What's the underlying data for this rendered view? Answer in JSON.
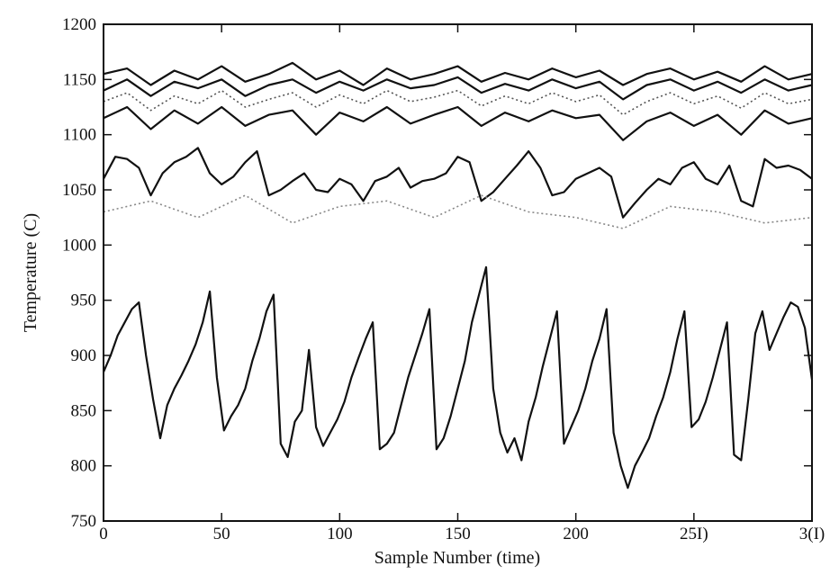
{
  "chart_data": {
    "type": "line",
    "title": "",
    "xlabel": "Sample Number (time)",
    "ylabel": "Temperature (C)",
    "xlim": [
      0,
      300
    ],
    "ylim": [
      750,
      1200
    ],
    "grid": false,
    "legend": "none",
    "x_ticks": [
      {
        "value": 0,
        "label": "0"
      },
      {
        "value": 50,
        "label": "50"
      },
      {
        "value": 100,
        "label": "100"
      },
      {
        "value": 150,
        "label": "150"
      },
      {
        "value": 200,
        "label": "200"
      },
      {
        "value": 250,
        "label": "25I)"
      },
      {
        "value": 300,
        "label": "3(I)"
      }
    ],
    "y_ticks": [
      {
        "value": 750,
        "label": "750"
      },
      {
        "value": 800,
        "label": "800"
      },
      {
        "value": 850,
        "label": "850"
      },
      {
        "value": 900,
        "label": "900"
      },
      {
        "value": 950,
        "label": "950"
      },
      {
        "value": 1000,
        "label": "1000"
      },
      {
        "value": 1050,
        "label": "1050"
      },
      {
        "value": 1100,
        "label": "1100"
      },
      {
        "value": 1150,
        "label": "1150"
      },
      {
        "value": 1200,
        "label": "1200"
      }
    ],
    "series": [
      {
        "style": "solid",
        "color": "#111111",
        "x": [
          0,
          10,
          20,
          30,
          40,
          50,
          60,
          70,
          80,
          90,
          100,
          110,
          120,
          130,
          140,
          150,
          160,
          170,
          180,
          190,
          200,
          210,
          220,
          230,
          240,
          250,
          260,
          270,
          280,
          290,
          300
        ],
        "y": [
          1155,
          1160,
          1145,
          1158,
          1150,
          1162,
          1148,
          1155,
          1165,
          1150,
          1158,
          1145,
          1160,
          1150,
          1155,
          1162,
          1148,
          1156,
          1150,
          1160,
          1152,
          1158,
          1145,
          1155,
          1160,
          1150,
          1157,
          1148,
          1162,
          1150,
          1155
        ]
      },
      {
        "style": "solid",
        "color": "#111111",
        "x": [
          0,
          10,
          20,
          30,
          40,
          50,
          60,
          70,
          80,
          90,
          100,
          110,
          120,
          130,
          140,
          150,
          160,
          170,
          180,
          190,
          200,
          210,
          220,
          230,
          240,
          250,
          260,
          270,
          280,
          290,
          300
        ],
        "y": [
          1140,
          1150,
          1135,
          1148,
          1142,
          1150,
          1135,
          1145,
          1150,
          1138,
          1148,
          1140,
          1150,
          1142,
          1145,
          1152,
          1138,
          1146,
          1140,
          1150,
          1142,
          1148,
          1132,
          1145,
          1150,
          1140,
          1148,
          1138,
          1150,
          1140,
          1145
        ]
      },
      {
        "style": "dotted",
        "color": "#555555",
        "x": [
          0,
          10,
          20,
          30,
          40,
          50,
          60,
          70,
          80,
          90,
          100,
          110,
          120,
          130,
          140,
          150,
          160,
          170,
          180,
          190,
          200,
          210,
          220,
          230,
          240,
          250,
          260,
          270,
          280,
          290,
          300
        ],
        "y": [
          1130,
          1138,
          1122,
          1135,
          1128,
          1140,
          1125,
          1132,
          1138,
          1125,
          1136,
          1128,
          1140,
          1130,
          1134,
          1140,
          1126,
          1135,
          1128,
          1138,
          1130,
          1136,
          1118,
          1130,
          1138,
          1128,
          1135,
          1124,
          1138,
          1128,
          1132
        ]
      },
      {
        "style": "solid",
        "color": "#111111",
        "x": [
          0,
          10,
          20,
          30,
          40,
          50,
          60,
          70,
          80,
          90,
          100,
          110,
          120,
          130,
          140,
          150,
          160,
          170,
          180,
          190,
          200,
          210,
          220,
          230,
          240,
          250,
          260,
          270,
          280,
          290,
          300
        ],
        "y": [
          1115,
          1125,
          1105,
          1122,
          1110,
          1125,
          1108,
          1118,
          1122,
          1100,
          1120,
          1112,
          1125,
          1110,
          1118,
          1125,
          1108,
          1120,
          1112,
          1122,
          1115,
          1118,
          1095,
          1112,
          1120,
          1108,
          1118,
          1100,
          1122,
          1110,
          1115
        ]
      },
      {
        "style": "solid",
        "color": "#111111",
        "x": [
          0,
          5,
          10,
          15,
          20,
          25,
          30,
          35,
          40,
          45,
          50,
          55,
          60,
          65,
          70,
          75,
          80,
          85,
          90,
          95,
          100,
          105,
          110,
          115,
          120,
          125,
          130,
          135,
          140,
          145,
          150,
          155,
          160,
          165,
          170,
          175,
          180,
          185,
          190,
          195,
          200,
          205,
          210,
          215,
          220,
          225,
          230,
          235,
          240,
          245,
          250,
          255,
          260,
          265,
          270,
          275,
          280,
          285,
          290,
          295,
          300
        ],
        "y": [
          1060,
          1080,
          1078,
          1070,
          1045,
          1065,
          1075,
          1080,
          1088,
          1065,
          1055,
          1062,
          1075,
          1085,
          1045,
          1050,
          1058,
          1065,
          1050,
          1048,
          1060,
          1055,
          1040,
          1058,
          1062,
          1070,
          1052,
          1058,
          1060,
          1065,
          1080,
          1075,
          1040,
          1048,
          1060,
          1072,
          1085,
          1070,
          1045,
          1048,
          1060,
          1065,
          1070,
          1062,
          1025,
          1038,
          1050,
          1060,
          1055,
          1070,
          1075,
          1060,
          1055,
          1072,
          1040,
          1035,
          1078,
          1070,
          1072,
          1068,
          1060
        ]
      },
      {
        "style": "dotted",
        "color": "#888888",
        "x": [
          0,
          20,
          40,
          60,
          80,
          100,
          120,
          140,
          160,
          180,
          200,
          220,
          240,
          260,
          280,
          300
        ],
        "y": [
          1030,
          1040,
          1025,
          1045,
          1020,
          1035,
          1040,
          1025,
          1045,
          1030,
          1025,
          1015,
          1035,
          1030,
          1020,
          1025
        ]
      },
      {
        "style": "solid",
        "color": "#111111",
        "x": [
          0,
          3,
          6,
          9,
          12,
          15,
          18,
          21,
          24,
          27,
          30,
          33,
          36,
          39,
          42,
          45,
          48,
          51,
          54,
          57,
          60,
          63,
          66,
          69,
          72,
          75,
          78,
          81,
          84,
          87,
          90,
          93,
          96,
          99,
          102,
          105,
          108,
          111,
          114,
          117,
          120,
          123,
          126,
          129,
          132,
          135,
          138,
          141,
          144,
          147,
          150,
          153,
          156,
          159,
          162,
          165,
          168,
          171,
          174,
          177,
          180,
          183,
          186,
          189,
          192,
          195,
          198,
          201,
          204,
          207,
          210,
          213,
          216,
          219,
          222,
          225,
          228,
          231,
          234,
          237,
          240,
          243,
          246,
          249,
          252,
          255,
          258,
          261,
          264,
          267,
          270,
          273,
          276,
          279,
          282,
          285,
          288,
          291,
          294,
          297,
          300
        ],
        "y": [
          885,
          900,
          918,
          930,
          942,
          948,
          900,
          860,
          825,
          855,
          870,
          882,
          895,
          910,
          930,
          958,
          880,
          832,
          845,
          855,
          870,
          895,
          915,
          940,
          955,
          820,
          808,
          840,
          850,
          905,
          835,
          818,
          830,
          842,
          858,
          880,
          898,
          915,
          930,
          815,
          820,
          830,
          855,
          880,
          900,
          920,
          942,
          815,
          825,
          845,
          870,
          895,
          930,
          955,
          980,
          870,
          830,
          812,
          825,
          805,
          840,
          862,
          890,
          915,
          940,
          820,
          835,
          850,
          870,
          895,
          915,
          942,
          830,
          800,
          780,
          800,
          812,
          825,
          845,
          862,
          885,
          915,
          940,
          835,
          842,
          858,
          880,
          905,
          930,
          810,
          805,
          860,
          920,
          940,
          905,
          920,
          935,
          948,
          944,
          925,
          878
        ]
      }
    ]
  }
}
